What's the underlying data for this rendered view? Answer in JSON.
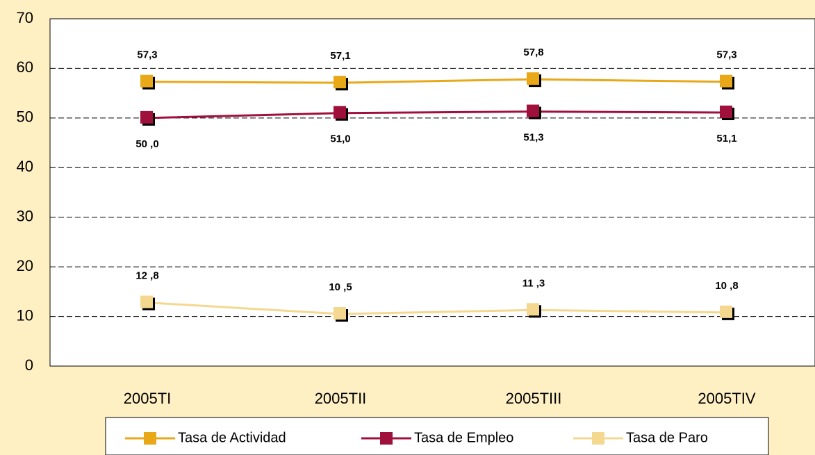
{
  "chart_data": {
    "type": "line",
    "categories": [
      "2005TI",
      "2005TII",
      "2005TIII",
      "2005TIV"
    ],
    "series": [
      {
        "name": "Tasa de Actividad",
        "color": "#E8A818",
        "values": [
          57.3,
          57.1,
          57.8,
          57.3
        ],
        "value_labels": [
          "57,3",
          "57,1",
          "57,8",
          "57,3"
        ]
      },
      {
        "name": "Tasa de Empleo",
        "color": "#A0103C",
        "values": [
          50.0,
          51.0,
          51.3,
          51.1
        ],
        "value_labels": [
          "50 ,0",
          "51,0",
          "51,3",
          "51,1"
        ]
      },
      {
        "name": "Tasa de Paro",
        "color": "#F5D890",
        "values": [
          12.8,
          10.5,
          11.3,
          10.8
        ],
        "value_labels": [
          "12 ,8",
          "10 ,5",
          "11 ,3",
          "10 ,8"
        ]
      }
    ],
    "ylim": [
      0,
      70
    ],
    "yticks": [
      0,
      10,
      20,
      30,
      40,
      50,
      60,
      70
    ],
    "grid": true,
    "legend": "bottom"
  }
}
